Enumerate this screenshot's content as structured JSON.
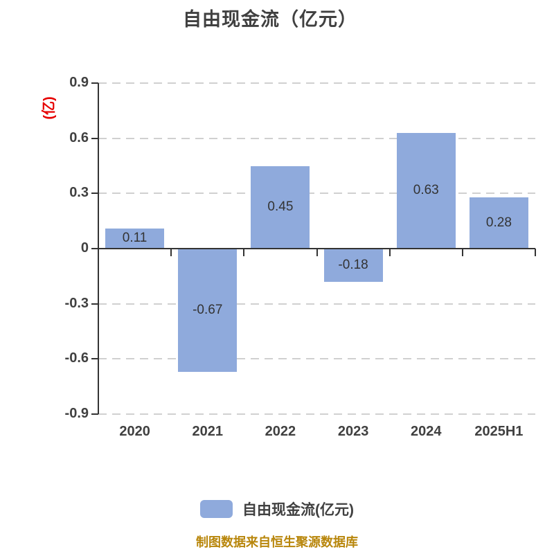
{
  "title": "自由现金流（亿元）",
  "y_axis_name": "(亿)",
  "legend": {
    "label": "自由现金流(亿元)"
  },
  "source_note": "制图数据来自恒生聚源数据库",
  "colors": {
    "bar": "#8faadc",
    "axis": "#333333",
    "grid": "#d0d0d0",
    "title_text": "#404040",
    "tick_text": "#404040",
    "value_text": "#333333",
    "axis_name_text": "#e60000",
    "source_text": "#b8860b"
  },
  "chart_data": {
    "type": "bar",
    "title": "自由现金流（亿元）",
    "ylabel": "(亿)",
    "categories": [
      "2020",
      "2021",
      "2022",
      "2023",
      "2024",
      "2025H1"
    ],
    "values": [
      0.11,
      -0.67,
      0.45,
      -0.18,
      0.63,
      0.28
    ],
    "value_labels": [
      "0.11",
      "-0.67",
      "0.45",
      "-0.18",
      "0.63",
      "0.28"
    ],
    "series_name": "自由现金流(亿元)",
    "ylim": [
      -0.9,
      0.9
    ],
    "ytick_labels": [
      "0.9",
      "0.6",
      "0.3",
      "0",
      "-0.3",
      "-0.6",
      "-0.9"
    ],
    "grid": true,
    "gridline_style": "dashed",
    "legend_position": "bottom",
    "value_label_position": "inside-center"
  }
}
